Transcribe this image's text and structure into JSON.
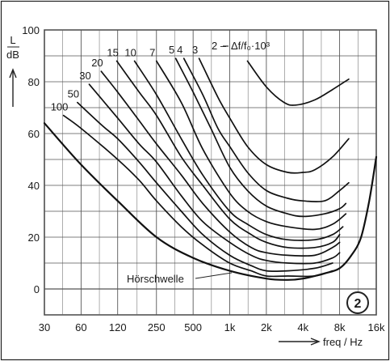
{
  "chart_data": {
    "type": "line",
    "x_scale": "log2",
    "grid": true,
    "xlim": [
      30,
      16000
    ],
    "ylim": [
      -10,
      100
    ],
    "x_ticks": [
      30,
      60,
      120,
      250,
      500,
      1000,
      2000,
      4000,
      8000,
      16000
    ],
    "x_tick_labels": [
      "30",
      "60",
      "120",
      "250",
      "500",
      "1k",
      "2k",
      "4k",
      "8k",
      "16k"
    ],
    "y_ticks": [
      0,
      20,
      40,
      60,
      80,
      100
    ],
    "y_tick_labels": [
      "0",
      "20",
      "40",
      "60",
      "80",
      "100"
    ],
    "ylabel_top": "L",
    "ylabel_bottom": "dB",
    "xlabel": "freq / Hz",
    "annotation": "Δf/f₀·10³",
    "figure_number": "2",
    "threshold_label": "Hörschwelle",
    "series": [
      {
        "name": "2",
        "points": [
          [
            1400,
            88
          ],
          [
            2000,
            78
          ],
          [
            2800,
            72
          ],
          [
            3500,
            71
          ],
          [
            5000,
            73
          ],
          [
            7000,
            77
          ],
          [
            9500,
            81
          ]
        ]
      },
      {
        "name": "3",
        "points": [
          [
            560,
            89
          ],
          [
            800,
            74
          ],
          [
            1000,
            66
          ],
          [
            1400,
            55
          ],
          [
            2000,
            48
          ],
          [
            3000,
            45
          ],
          [
            4000,
            45
          ],
          [
            5000,
            46
          ],
          [
            7000,
            51
          ],
          [
            9500,
            58
          ]
        ]
      },
      {
        "name": "4",
        "points": [
          [
            420,
            89
          ],
          [
            600,
            75
          ],
          [
            800,
            62
          ],
          [
            1000,
            55
          ],
          [
            1400,
            45
          ],
          [
            2000,
            38
          ],
          [
            3000,
            35
          ],
          [
            4000,
            34
          ],
          [
            6000,
            34
          ],
          [
            8000,
            38
          ],
          [
            9500,
            41
          ]
        ]
      },
      {
        "name": "5",
        "points": [
          [
            360,
            89
          ],
          [
            500,
            76
          ],
          [
            700,
            62
          ],
          [
            1000,
            47
          ],
          [
            1400,
            38
          ],
          [
            2000,
            32
          ],
          [
            3000,
            29
          ],
          [
            4000,
            28
          ],
          [
            6000,
            29
          ],
          [
            8000,
            31
          ],
          [
            9000,
            33
          ]
        ]
      },
      {
        "name": "7",
        "points": [
          [
            250,
            88
          ],
          [
            400,
            72
          ],
          [
            600,
            54
          ],
          [
            1000,
            37
          ],
          [
            1400,
            30
          ],
          [
            2000,
            26
          ],
          [
            3000,
            24
          ],
          [
            5000,
            23
          ],
          [
            7000,
            25
          ],
          [
            9000,
            29
          ]
        ]
      },
      {
        "name": "10",
        "points": [
          [
            165,
            88
          ],
          [
            250,
            75
          ],
          [
            400,
            58
          ],
          [
            600,
            44
          ],
          [
            1000,
            30
          ],
          [
            1400,
            25
          ],
          [
            2000,
            21
          ],
          [
            3000,
            19
          ],
          [
            5000,
            19
          ],
          [
            7000,
            21
          ],
          [
            8500,
            24
          ]
        ]
      },
      {
        "name": "15",
        "points": [
          [
            118,
            88
          ],
          [
            180,
            76
          ],
          [
            250,
            67
          ],
          [
            400,
            51
          ],
          [
            600,
            40
          ],
          [
            1000,
            27
          ],
          [
            1500,
            21
          ],
          [
            2000,
            18
          ],
          [
            3000,
            16
          ],
          [
            5000,
            16
          ],
          [
            7000,
            18
          ],
          [
            8000,
            21
          ]
        ]
      },
      {
        "name": "20",
        "points": [
          [
            88,
            84
          ],
          [
            120,
            76
          ],
          [
            180,
            65
          ],
          [
            250,
            56
          ],
          [
            400,
            44
          ],
          [
            600,
            33
          ],
          [
            1000,
            22
          ],
          [
            1500,
            16
          ],
          [
            2000,
            14
          ],
          [
            3000,
            13
          ],
          [
            5000,
            13
          ],
          [
            7000,
            16
          ],
          [
            8000,
            18
          ]
        ]
      },
      {
        "name": "30",
        "points": [
          [
            70,
            79
          ],
          [
            120,
            66
          ],
          [
            180,
            56
          ],
          [
            250,
            49
          ],
          [
            400,
            36
          ],
          [
            600,
            26
          ],
          [
            1000,
            18
          ],
          [
            1500,
            13
          ],
          [
            2000,
            11
          ],
          [
            3000,
            10
          ],
          [
            5000,
            10
          ],
          [
            7000,
            12
          ],
          [
            8000,
            14
          ]
        ]
      },
      {
        "name": "50",
        "points": [
          [
            56,
            72
          ],
          [
            90,
            63
          ],
          [
            120,
            58
          ],
          [
            180,
            49
          ],
          [
            250,
            41
          ],
          [
            400,
            30
          ],
          [
            600,
            21
          ],
          [
            1000,
            13
          ],
          [
            1500,
            9
          ],
          [
            2000,
            7
          ],
          [
            3000,
            7
          ],
          [
            5000,
            8
          ],
          [
            7000,
            10
          ]
        ]
      },
      {
        "name": "100",
        "points": [
          [
            43,
            67
          ],
          [
            60,
            62
          ],
          [
            120,
            50
          ],
          [
            180,
            42
          ],
          [
            250,
            34
          ],
          [
            400,
            24
          ],
          [
            600,
            17
          ],
          [
            1000,
            10
          ],
          [
            1500,
            7
          ],
          [
            2000,
            5
          ],
          [
            3000,
            5
          ],
          [
            5000,
            5
          ],
          [
            7000,
            7
          ]
        ]
      },
      {
        "name": "Hörschwelle",
        "points": [
          [
            30,
            64
          ],
          [
            60,
            48
          ],
          [
            120,
            34
          ],
          [
            250,
            20
          ],
          [
            500,
            12
          ],
          [
            1000,
            7
          ],
          [
            2000,
            4
          ],
          [
            3000,
            3.5
          ],
          [
            4000,
            4
          ],
          [
            6000,
            6
          ],
          [
            8000,
            8
          ],
          [
            10000,
            13
          ],
          [
            12000,
            20
          ],
          [
            14000,
            34
          ],
          [
            16000,
            51
          ]
        ]
      }
    ]
  }
}
